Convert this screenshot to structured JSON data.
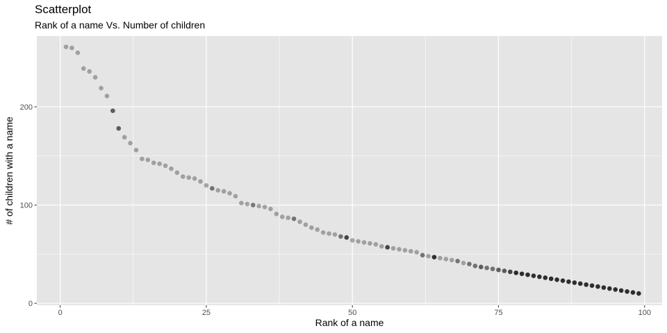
{
  "chart_data": {
    "type": "scatter",
    "title": "Scatterplot",
    "subtitle": "Rank of a name Vs. Number of children",
    "xlabel": "Rank of a name",
    "ylabel": "# of children with a name",
    "xlim": [
      -4,
      103
    ],
    "ylim": [
      -2,
      272
    ],
    "x_ticks": [
      0,
      25,
      50,
      75,
      100
    ],
    "y_ticks": [
      0,
      100,
      200
    ],
    "grid": true,
    "point_color": "#000000",
    "panel_color": "#e5e5e5",
    "grid_color": "#ffffff",
    "points": [
      {
        "x": 1,
        "y": 261,
        "alpha": 0.3
      },
      {
        "x": 2,
        "y": 260,
        "alpha": 0.3
      },
      {
        "x": 3,
        "y": 255,
        "alpha": 0.3
      },
      {
        "x": 4,
        "y": 239,
        "alpha": 0.3
      },
      {
        "x": 5,
        "y": 236,
        "alpha": 0.3
      },
      {
        "x": 6,
        "y": 230,
        "alpha": 0.3
      },
      {
        "x": 7,
        "y": 219,
        "alpha": 0.3
      },
      {
        "x": 8,
        "y": 211,
        "alpha": 0.3
      },
      {
        "x": 9,
        "y": 196,
        "alpha": 0.6
      },
      {
        "x": 10,
        "y": 178,
        "alpha": 0.6
      },
      {
        "x": 11,
        "y": 169,
        "alpha": 0.3
      },
      {
        "x": 12,
        "y": 163,
        "alpha": 0.3
      },
      {
        "x": 13,
        "y": 156,
        "alpha": 0.3
      },
      {
        "x": 14,
        "y": 147,
        "alpha": 0.3
      },
      {
        "x": 15,
        "y": 146,
        "alpha": 0.3
      },
      {
        "x": 16,
        "y": 143,
        "alpha": 0.3
      },
      {
        "x": 17,
        "y": 142,
        "alpha": 0.3
      },
      {
        "x": 18,
        "y": 140,
        "alpha": 0.3
      },
      {
        "x": 19,
        "y": 137,
        "alpha": 0.3
      },
      {
        "x": 20,
        "y": 133,
        "alpha": 0.3
      },
      {
        "x": 21,
        "y": 129,
        "alpha": 0.3
      },
      {
        "x": 22,
        "y": 128,
        "alpha": 0.3
      },
      {
        "x": 23,
        "y": 127,
        "alpha": 0.3
      },
      {
        "x": 24,
        "y": 124,
        "alpha": 0.3
      },
      {
        "x": 25,
        "y": 120,
        "alpha": 0.3
      },
      {
        "x": 26,
        "y": 117,
        "alpha": 0.5
      },
      {
        "x": 27,
        "y": 115,
        "alpha": 0.3
      },
      {
        "x": 28,
        "y": 114,
        "alpha": 0.3
      },
      {
        "x": 29,
        "y": 112,
        "alpha": 0.3
      },
      {
        "x": 30,
        "y": 109,
        "alpha": 0.3
      },
      {
        "x": 31,
        "y": 102,
        "alpha": 0.3
      },
      {
        "x": 32,
        "y": 101,
        "alpha": 0.3
      },
      {
        "x": 33,
        "y": 100,
        "alpha": 0.5
      },
      {
        "x": 34,
        "y": 99,
        "alpha": 0.3
      },
      {
        "x": 35,
        "y": 98,
        "alpha": 0.3
      },
      {
        "x": 36,
        "y": 96,
        "alpha": 0.3
      },
      {
        "x": 37,
        "y": 91,
        "alpha": 0.3
      },
      {
        "x": 38,
        "y": 88,
        "alpha": 0.3
      },
      {
        "x": 39,
        "y": 87,
        "alpha": 0.3
      },
      {
        "x": 40,
        "y": 86,
        "alpha": 0.5
      },
      {
        "x": 41,
        "y": 83,
        "alpha": 0.3
      },
      {
        "x": 42,
        "y": 80,
        "alpha": 0.3
      },
      {
        "x": 43,
        "y": 77,
        "alpha": 0.3
      },
      {
        "x": 44,
        "y": 75,
        "alpha": 0.3
      },
      {
        "x": 45,
        "y": 72,
        "alpha": 0.3
      },
      {
        "x": 46,
        "y": 71,
        "alpha": 0.3
      },
      {
        "x": 47,
        "y": 70,
        "alpha": 0.3
      },
      {
        "x": 48,
        "y": 68,
        "alpha": 0.5
      },
      {
        "x": 49,
        "y": 67,
        "alpha": 0.7
      },
      {
        "x": 50,
        "y": 64,
        "alpha": 0.3
      },
      {
        "x": 51,
        "y": 63,
        "alpha": 0.3
      },
      {
        "x": 52,
        "y": 62,
        "alpha": 0.3
      },
      {
        "x": 53,
        "y": 61,
        "alpha": 0.3
      },
      {
        "x": 54,
        "y": 60,
        "alpha": 0.3
      },
      {
        "x": 55,
        "y": 58,
        "alpha": 0.3
      },
      {
        "x": 56,
        "y": 57,
        "alpha": 0.7
      },
      {
        "x": 57,
        "y": 56,
        "alpha": 0.3
      },
      {
        "x": 58,
        "y": 55,
        "alpha": 0.3
      },
      {
        "x": 59,
        "y": 54,
        "alpha": 0.3
      },
      {
        "x": 60,
        "y": 53,
        "alpha": 0.3
      },
      {
        "x": 61,
        "y": 52,
        "alpha": 0.3
      },
      {
        "x": 62,
        "y": 49,
        "alpha": 0.5
      },
      {
        "x": 63,
        "y": 48,
        "alpha": 0.3
      },
      {
        "x": 64,
        "y": 47,
        "alpha": 0.8
      },
      {
        "x": 65,
        "y": 46,
        "alpha": 0.3
      },
      {
        "x": 66,
        "y": 45,
        "alpha": 0.3
      },
      {
        "x": 67,
        "y": 44,
        "alpha": 0.3
      },
      {
        "x": 68,
        "y": 43,
        "alpha": 0.5
      },
      {
        "x": 69,
        "y": 41,
        "alpha": 0.3
      },
      {
        "x": 70,
        "y": 40,
        "alpha": 0.5
      },
      {
        "x": 71,
        "y": 38,
        "alpha": 0.5
      },
      {
        "x": 72,
        "y": 37,
        "alpha": 0.6
      },
      {
        "x": 73,
        "y": 36,
        "alpha": 0.5
      },
      {
        "x": 74,
        "y": 35,
        "alpha": 0.5
      },
      {
        "x": 75,
        "y": 34,
        "alpha": 0.6
      },
      {
        "x": 76,
        "y": 33,
        "alpha": 0.6
      },
      {
        "x": 77,
        "y": 32,
        "alpha": 0.7
      },
      {
        "x": 78,
        "y": 31,
        "alpha": 0.8
      },
      {
        "x": 79,
        "y": 30,
        "alpha": 0.8
      },
      {
        "x": 80,
        "y": 29,
        "alpha": 0.8
      },
      {
        "x": 81,
        "y": 28,
        "alpha": 0.8
      },
      {
        "x": 82,
        "y": 27,
        "alpha": 0.8
      },
      {
        "x": 83,
        "y": 26,
        "alpha": 0.8
      },
      {
        "x": 84,
        "y": 25,
        "alpha": 0.8
      },
      {
        "x": 85,
        "y": 24,
        "alpha": 0.8
      },
      {
        "x": 86,
        "y": 23,
        "alpha": 0.8
      },
      {
        "x": 87,
        "y": 22,
        "alpha": 0.8
      },
      {
        "x": 88,
        "y": 21,
        "alpha": 0.8
      },
      {
        "x": 89,
        "y": 20,
        "alpha": 0.8
      },
      {
        "x": 90,
        "y": 19,
        "alpha": 0.8
      },
      {
        "x": 91,
        "y": 18,
        "alpha": 0.8
      },
      {
        "x": 92,
        "y": 17,
        "alpha": 0.8
      },
      {
        "x": 93,
        "y": 16,
        "alpha": 0.8
      },
      {
        "x": 94,
        "y": 15,
        "alpha": 0.8
      },
      {
        "x": 95,
        "y": 14,
        "alpha": 0.8
      },
      {
        "x": 96,
        "y": 13,
        "alpha": 0.8
      },
      {
        "x": 97,
        "y": 12,
        "alpha": 0.8
      },
      {
        "x": 98,
        "y": 11,
        "alpha": 0.8
      },
      {
        "x": 99,
        "y": 10,
        "alpha": 0.8
      }
    ]
  }
}
